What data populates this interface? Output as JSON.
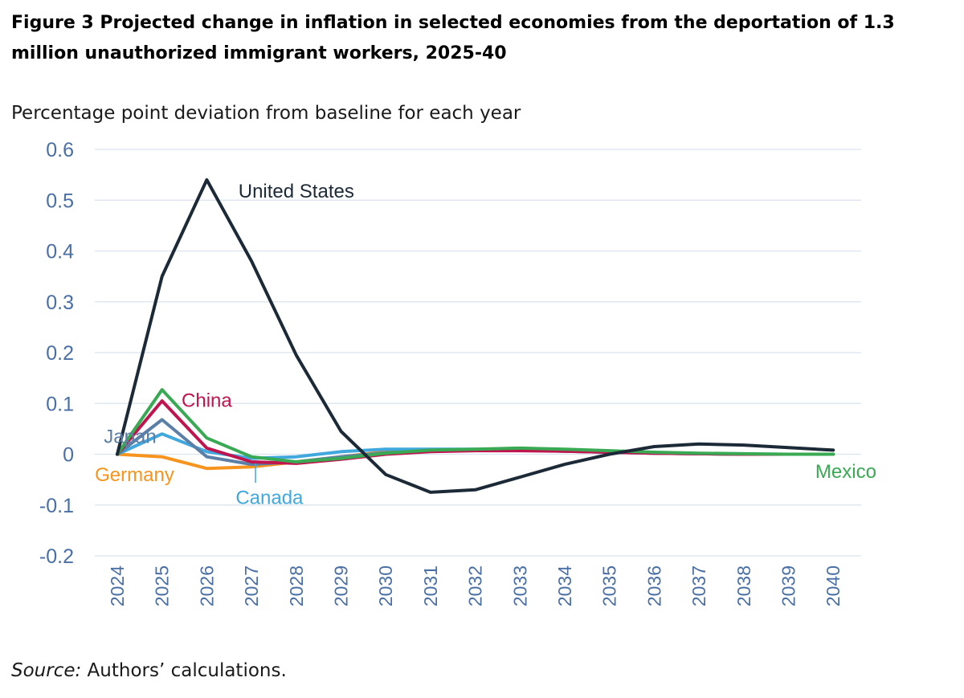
{
  "title": "Figure 3 Projected change in inflation in selected economies from the deportation of 1.3 million unauthorized immigrant workers, 2025-40",
  "source_label": "Source:",
  "source_text": " Authors’ calculations.",
  "chart_data": {
    "type": "line",
    "ylabel": "Percentage point deviation from baseline for each year",
    "ylim": [
      -0.2,
      0.6
    ],
    "yticks": [
      0.6,
      0.5,
      0.4,
      0.3,
      0.2,
      0.1,
      0,
      -0.1,
      -0.2
    ],
    "ytick_labels": [
      "0.6",
      "0.5",
      "0.4",
      "0.3",
      "0.2",
      "0.1",
      "0",
      "-0.1",
      "-0.2"
    ],
    "grid": true,
    "categories": [
      "2024",
      "2025",
      "2026",
      "2027",
      "2028",
      "2029",
      "2030",
      "2031",
      "2032",
      "2033",
      "2034",
      "2035",
      "2036",
      "2037",
      "2038",
      "2039",
      "2040"
    ],
    "series": [
      {
        "name": "Germany",
        "color": "#f7941d",
        "values": [
          0,
          -0.005,
          -0.028,
          -0.025,
          -0.015,
          -0.005,
          0.005,
          0.008,
          0.008,
          0.008,
          0.006,
          0.004,
          0.002,
          0.001,
          0.0,
          0.0,
          0.0
        ]
      },
      {
        "name": "Canada",
        "color": "#41a8de",
        "values": [
          0,
          0.04,
          0.005,
          -0.008,
          -0.005,
          0.005,
          0.01,
          0.01,
          0.01,
          0.008,
          0.006,
          0.004,
          0.002,
          0.001,
          0.0,
          0.0,
          0.0
        ]
      },
      {
        "name": "Japan",
        "color": "#5b7fa6",
        "values": [
          0,
          0.068,
          -0.005,
          -0.02,
          -0.015,
          -0.005,
          0.003,
          0.006,
          0.008,
          0.008,
          0.006,
          0.004,
          0.002,
          0.001,
          0.0,
          0.0,
          0.0
        ]
      },
      {
        "name": "China",
        "color": "#c0144f",
        "values": [
          0,
          0.105,
          0.012,
          -0.015,
          -0.018,
          -0.01,
          0.0,
          0.005,
          0.007,
          0.007,
          0.006,
          0.004,
          0.002,
          0.001,
          0.0,
          0.0,
          0.0
        ]
      },
      {
        "name": "Mexico",
        "color": "#39a953",
        "values": [
          0,
          0.127,
          0.032,
          -0.005,
          -0.015,
          -0.008,
          0.002,
          0.008,
          0.01,
          0.012,
          0.01,
          0.007,
          0.004,
          0.002,
          0.001,
          0.0,
          0.0
        ]
      },
      {
        "name": "United States",
        "color": "#1c2a38",
        "values": [
          0,
          0.35,
          0.54,
          0.38,
          0.195,
          0.045,
          -0.04,
          -0.075,
          -0.07,
          -0.045,
          -0.02,
          0.0,
          0.015,
          0.02,
          0.018,
          0.013,
          0.008
        ]
      }
    ],
    "labels": [
      {
        "text": "United States",
        "series": "United States",
        "x": 2028.0,
        "y": 0.505,
        "anchor": "middle"
      },
      {
        "text": "China",
        "series": "China",
        "x": 2026.0,
        "y": 0.093,
        "anchor": "middle"
      },
      {
        "text": "Japan",
        "series": "Japan",
        "x": 2023.7,
        "y": 0.022,
        "anchor": "start"
      },
      {
        "text": "Germany",
        "series": "Germany",
        "x": 2023.5,
        "y": -0.053,
        "anchor": "start"
      },
      {
        "text": "Canada",
        "series": "Canada",
        "x": 2027.4,
        "y": -0.098,
        "anchor": "middle"
      },
      {
        "text": "Mexico",
        "series": "Mexico",
        "x": 2039.6,
        "y": -0.047,
        "anchor": "start"
      }
    ]
  }
}
